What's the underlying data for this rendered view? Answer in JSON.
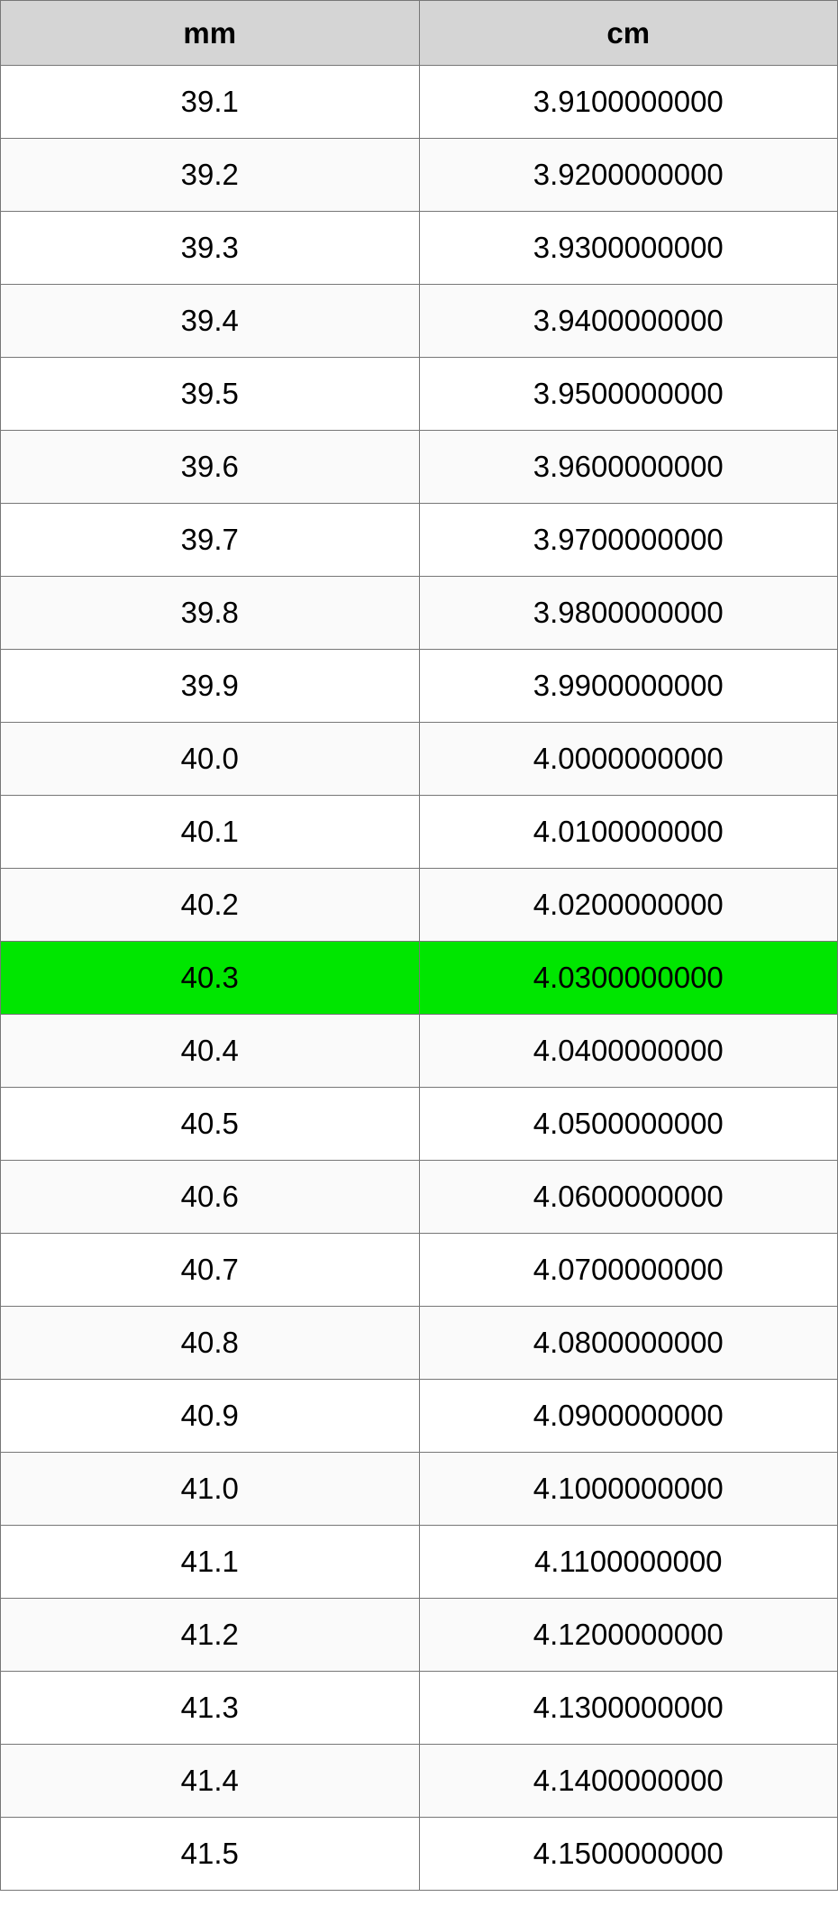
{
  "table": {
    "columns": [
      "mm",
      "cm"
    ],
    "header_bg": "#d5d5d5",
    "border_color": "#777777",
    "row_bg_odd": "#ffffff",
    "row_bg_even": "#fafafa",
    "highlight_bg": "#00e600",
    "header_fontsize": 33,
    "cell_fontsize": 33,
    "highlighted_index": 12,
    "rows": [
      {
        "mm": "39.1",
        "cm": "3.9100000000"
      },
      {
        "mm": "39.2",
        "cm": "3.9200000000"
      },
      {
        "mm": "39.3",
        "cm": "3.9300000000"
      },
      {
        "mm": "39.4",
        "cm": "3.9400000000"
      },
      {
        "mm": "39.5",
        "cm": "3.9500000000"
      },
      {
        "mm": "39.6",
        "cm": "3.9600000000"
      },
      {
        "mm": "39.7",
        "cm": "3.9700000000"
      },
      {
        "mm": "39.8",
        "cm": "3.9800000000"
      },
      {
        "mm": "39.9",
        "cm": "3.9900000000"
      },
      {
        "mm": "40.0",
        "cm": "4.0000000000"
      },
      {
        "mm": "40.1",
        "cm": "4.0100000000"
      },
      {
        "mm": "40.2",
        "cm": "4.0200000000"
      },
      {
        "mm": "40.3",
        "cm": "4.0300000000"
      },
      {
        "mm": "40.4",
        "cm": "4.0400000000"
      },
      {
        "mm": "40.5",
        "cm": "4.0500000000"
      },
      {
        "mm": "40.6",
        "cm": "4.0600000000"
      },
      {
        "mm": "40.7",
        "cm": "4.0700000000"
      },
      {
        "mm": "40.8",
        "cm": "4.0800000000"
      },
      {
        "mm": "40.9",
        "cm": "4.0900000000"
      },
      {
        "mm": "41.0",
        "cm": "4.1000000000"
      },
      {
        "mm": "41.1",
        "cm": "4.1100000000"
      },
      {
        "mm": "41.2",
        "cm": "4.1200000000"
      },
      {
        "mm": "41.3",
        "cm": "4.1300000000"
      },
      {
        "mm": "41.4",
        "cm": "4.1400000000"
      },
      {
        "mm": "41.5",
        "cm": "4.1500000000"
      }
    ]
  }
}
